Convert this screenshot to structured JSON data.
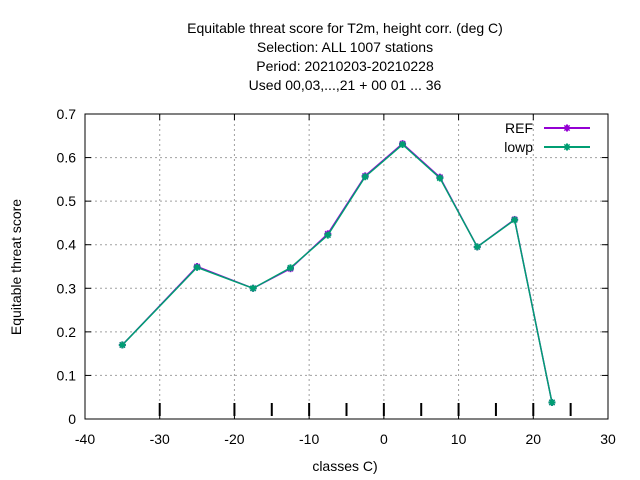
{
  "chart_data": {
    "type": "line",
    "title_lines": [
      "Equitable threat score  for T2m, height corr. (deg C)",
      "Selection: ALL   1007 stations",
      "Period: 20210203-20210228",
      "Used  00,03,...,21  + 00 01 ... 36"
    ],
    "xlabel": "classes C)",
    "ylabel": "Equitable threat score",
    "xlim": [
      -40,
      30
    ],
    "ylim": [
      0,
      0.7
    ],
    "xticks": [
      -40,
      -30,
      -20,
      -10,
      0,
      10,
      20,
      30
    ],
    "yticks": [
      0,
      0.1,
      0.2,
      0.3,
      0.4,
      0.5,
      0.6,
      0.7
    ],
    "ytick_labels": [
      "0",
      "0.1",
      "0.2",
      "0.3",
      "0.4",
      "0.5",
      "0.6",
      "0.7"
    ],
    "class_limits": [
      -30,
      -20,
      -15,
      -10,
      -5,
      0,
      5,
      10,
      15,
      20,
      25
    ],
    "grid": true,
    "legend_position": "top-right",
    "series": [
      {
        "name": "REF",
        "color": "#9400d3",
        "x": [
          -35,
          -25,
          -17.5,
          -12.5,
          -7.5,
          -2.5,
          2.5,
          7.5,
          12.5,
          17.5,
          22.5
        ],
        "y": [
          0.17,
          0.35,
          0.3,
          0.345,
          0.425,
          0.558,
          0.632,
          0.555,
          0.395,
          0.458,
          0.038
        ]
      },
      {
        "name": "lowp",
        "color": "#009e73",
        "x": [
          -35,
          -25,
          -17.5,
          -12.5,
          -7.5,
          -2.5,
          2.5,
          7.5,
          12.5,
          17.5,
          22.5
        ],
        "y": [
          0.17,
          0.348,
          0.3,
          0.347,
          0.422,
          0.556,
          0.63,
          0.553,
          0.395,
          0.457,
          0.038
        ]
      }
    ]
  }
}
